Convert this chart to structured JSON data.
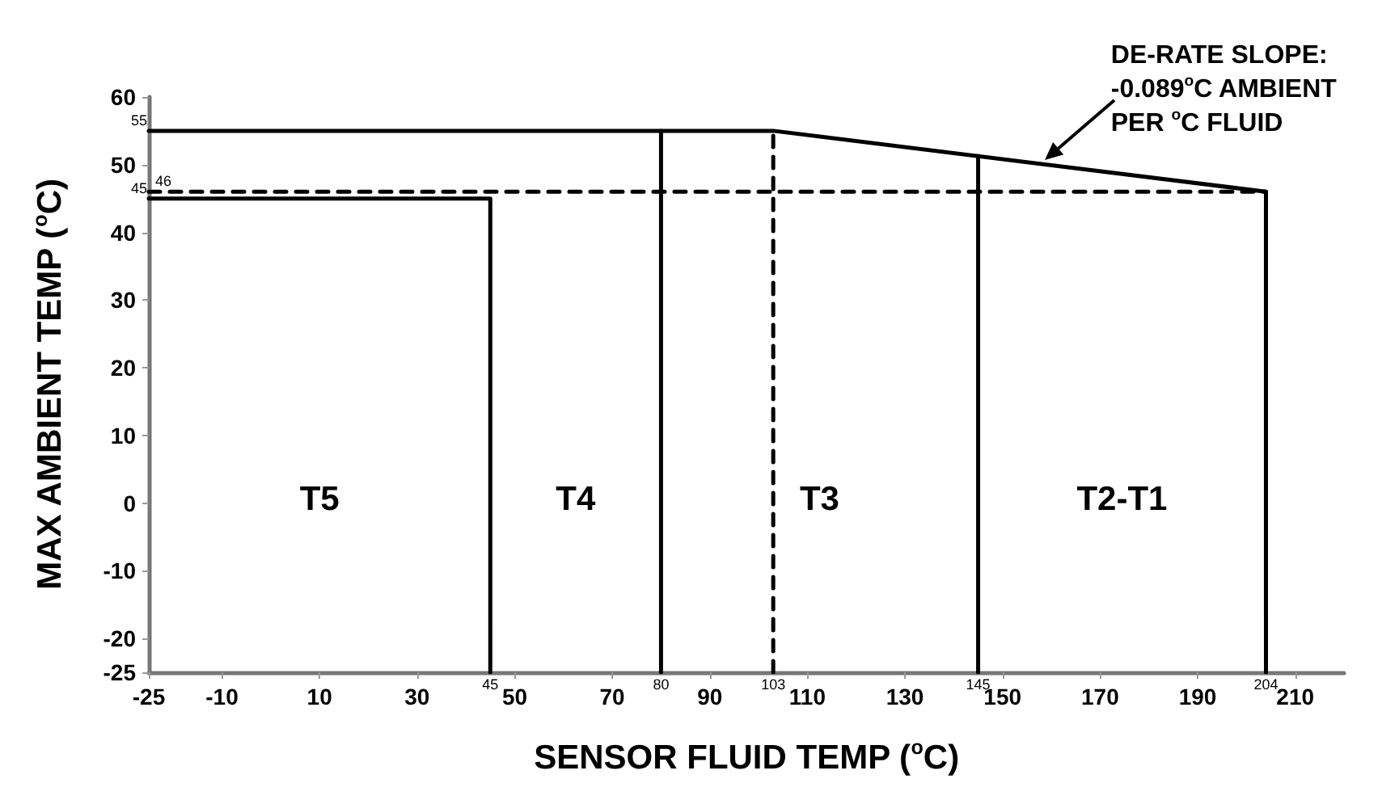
{
  "chart_data": {
    "type": "line",
    "xlabel": "SENSOR FLUID TEMP ($^{o}$C)",
    "ylabel": "MAX AMBIENT TEMP ($^{o}$C)",
    "xlim": [
      -25,
      220
    ],
    "xticks": [
      -25,
      -10,
      10,
      30,
      50,
      70,
      90,
      110,
      130,
      150,
      170,
      190,
      210
    ],
    "ylim": [
      -25,
      60
    ],
    "yticks": [
      -25,
      -20,
      -10,
      0,
      10,
      20,
      30,
      40,
      50,
      60
    ],
    "grid": false,
    "marker": "none",
    "series": [
      {
        "color": "#000000",
        "line_style": "solid",
        "x": [
          -25,
          103,
          204,
          204
        ],
        "values": [
          55,
          55,
          46,
          -25
        ]
      },
      {
        "color": "#000000",
        "line_style": "solid",
        "x": [
          -25,
          45,
          45
        ],
        "values": [
          45,
          45,
          -25
        ]
      },
      {
        "color": "#000000",
        "line_style": "solid",
        "x": [
          80,
          80
        ],
        "values": [
          -25,
          55
        ]
      },
      {
        "color": "#000000",
        "line_style": "solid",
        "x": [
          145,
          145
        ],
        "values": [
          -25,
          51.3
        ]
      },
      {
        "color": "#000000",
        "line_style": "dashed",
        "x": [
          -25,
          204
        ],
        "values": [
          46,
          46
        ]
      },
      {
        "color": "#000000",
        "line_style": "dashed",
        "x": [
          103,
          103
        ],
        "values": [
          -25,
          55
        ]
      }
    ],
    "annotations": [
      {
        "text": "55",
        "x": -25,
        "y": 55
      },
      {
        "text": "46",
        "x": -25,
        "y": 46
      },
      {
        "text": "45",
        "x": -25,
        "y": 45
      },
      {
        "text": "45",
        "x": 45,
        "y": -25
      },
      {
        "text": "80",
        "x": 80,
        "y": -25
      },
      {
        "text": "103",
        "x": 103,
        "y": -25
      },
      {
        "text": "145",
        "x": 145,
        "y": -25
      },
      {
        "text": "204",
        "x": 204,
        "y": -25
      },
      "T5",
      "T4",
      "T3",
      "T2-T1",
      "DE-RATE SLOPE:\n-0.089$^{o}$C AMBIENT\nPER $^{o}$C FLUID"
    ]
  }
}
